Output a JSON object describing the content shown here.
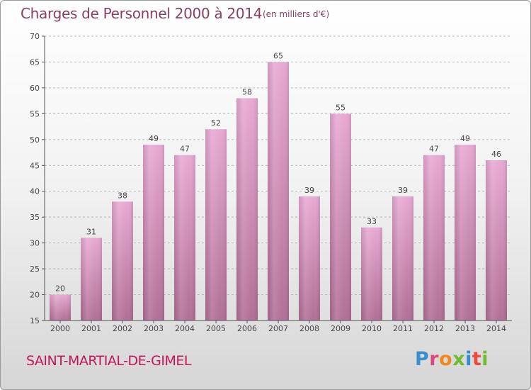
{
  "header": {
    "title": "Charges de Personnel 2000 à 2014",
    "subtitle": "(en milliers d'€)"
  },
  "footer": {
    "commune": "SAINT-MARTIAL-DE-GIMEL",
    "logo": [
      "P",
      "r",
      "o",
      "x",
      "i",
      "t",
      "i"
    ]
  },
  "colors": {
    "bar_light": "#e8a9d2",
    "bar_dark": "#b06f95",
    "axis_text": "#444444",
    "title": "#8a3f62",
    "commune": "#c2185b"
  },
  "chart_data": {
    "type": "bar",
    "title": "Charges de Personnel 2000 à 2014",
    "subtitle": "(en milliers d'€)",
    "categories": [
      "2000",
      "2001",
      "2002",
      "2003",
      "2004",
      "2005",
      "2006",
      "2007",
      "2008",
      "2009",
      "2010",
      "2011",
      "2012",
      "2013",
      "2014"
    ],
    "values": [
      20,
      31,
      38,
      49,
      47,
      52,
      58,
      65,
      39,
      55,
      33,
      39,
      47,
      49,
      46
    ],
    "data_labels": [
      "20",
      "31",
      "38",
      "49",
      "47",
      "52",
      "58",
      "65",
      "39",
      "55",
      "33",
      "39",
      "47",
      "49",
      "46"
    ],
    "ylim": [
      15,
      70
    ],
    "yticks": [
      15,
      20,
      25,
      30,
      35,
      40,
      45,
      50,
      55,
      60,
      65,
      70
    ],
    "grid": "horizontal dashed",
    "xlabel": "",
    "ylabel": ""
  }
}
